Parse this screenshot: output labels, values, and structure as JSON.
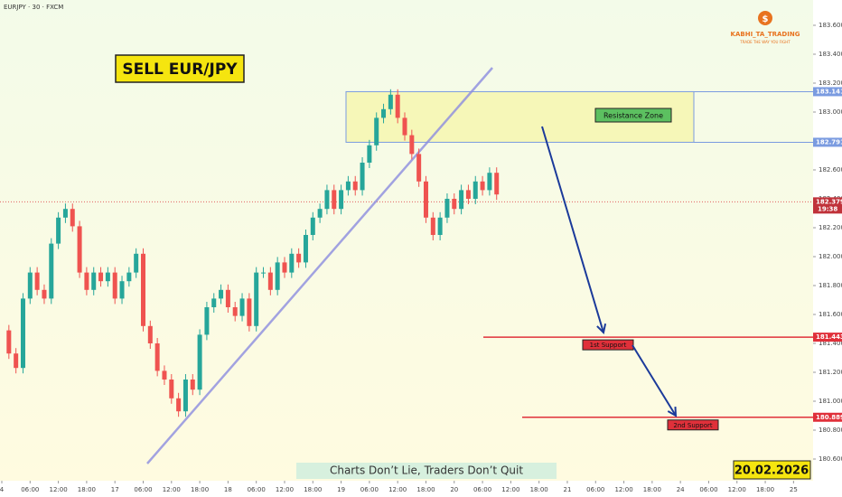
{
  "chart_data": {
    "type": "candlestick",
    "title": "EURJPY · 30 · FXCM",
    "headline": "SELL EUR/JPY",
    "brand": "KABHI_TA_TRADING",
    "tagline": "TRADE THE WAY YOU FIGHT",
    "footer": "Charts Don’t Lie, Traders Don’t Quit",
    "date": "20.02.2026",
    "countdown": "19:38",
    "current_price": 182.379,
    "resistance_zone": {
      "label": "Resistance Zone",
      "top": 183.141,
      "bottom": 182.791
    },
    "supports": [
      {
        "label": "1st Support",
        "value": 181.443
      },
      {
        "label": "2nd Support",
        "value": 180.889
      }
    ],
    "up_color": "#26a69a",
    "down_color": "#ef5350",
    "x": [
      0,
      3,
      6,
      9,
      12,
      15,
      18,
      21,
      24,
      27,
      30,
      33,
      36,
      39,
      42,
      45,
      48,
      51,
      54,
      57,
      60,
      63,
      66,
      69,
      72,
      75,
      78,
      81,
      84,
      87,
      90,
      93,
      96,
      99,
      102,
      105,
      108,
      111,
      114,
      117,
      120,
      123,
      126,
      129,
      132,
      135,
      138,
      141,
      144,
      147,
      150,
      153,
      156,
      159,
      162,
      165,
      168,
      171,
      174,
      177,
      180,
      183,
      186,
      189,
      192,
      195,
      198,
      201,
      204,
      207,
      210
    ],
    "values": [
      181.49,
      181.33,
      181.23,
      181.71,
      181.89,
      181.77,
      181.71,
      182.09,
      182.27,
      182.33,
      182.21,
      181.89,
      181.77,
      181.89,
      181.83,
      181.89,
      181.71,
      181.83,
      181.89,
      182.02,
      181.52,
      181.4,
      181.21,
      181.15,
      181.02,
      180.93,
      181.15,
      181.08,
      181.46,
      181.65,
      181.71,
      181.77,
      181.65,
      181.59,
      181.71,
      181.52,
      181.89,
      181.89,
      181.77,
      181.96,
      181.89,
      182.02,
      181.96,
      182.15,
      182.27,
      182.33,
      182.46,
      182.33,
      182.46,
      182.52,
      182.46,
      182.65,
      182.77,
      182.96,
      183.02,
      183.12,
      182.96,
      182.84,
      182.71,
      182.52,
      182.27,
      182.15,
      182.27,
      182.4,
      182.33,
      182.46,
      182.4,
      182.52,
      182.46,
      182.58,
      182.43
    ],
    "xlim": [
      -0.77,
      344.3
    ],
    "xticks": [
      {
        "value": 0,
        "label": "4"
      },
      {
        "value": 12,
        "label": "06:00"
      },
      {
        "value": 24,
        "label": "12:00"
      },
      {
        "value": 36,
        "label": "18:00"
      },
      {
        "value": 48,
        "label": "17"
      },
      {
        "value": 60,
        "label": "06:00"
      },
      {
        "value": 72,
        "label": "12:00"
      },
      {
        "value": 84,
        "label": "18:00"
      },
      {
        "value": 96,
        "label": "18"
      },
      {
        "value": 108,
        "label": "06:00"
      },
      {
        "value": 120,
        "label": "12:00"
      },
      {
        "value": 132,
        "label": "18:00"
      },
      {
        "value": 144,
        "label": "19"
      },
      {
        "value": 156,
        "label": "06:00"
      },
      {
        "value": 168,
        "label": "12:00"
      },
      {
        "value": 180,
        "label": "18:00"
      },
      {
        "value": 192,
        "label": "20"
      },
      {
        "value": 204,
        "label": "06:00"
      },
      {
        "value": 216,
        "label": "12:00"
      },
      {
        "value": 228,
        "label": "18:00"
      },
      {
        "value": 240,
        "label": "21"
      },
      {
        "value": 252,
        "label": "06:00"
      },
      {
        "value": 264,
        "label": "12:00"
      },
      {
        "value": 276,
        "label": "18:00"
      },
      {
        "value": 288,
        "label": "24"
      },
      {
        "value": 300,
        "label": "06:00"
      },
      {
        "value": 312,
        "label": "12:00"
      },
      {
        "value": 324,
        "label": "18:00"
      },
      {
        "value": 336,
        "label": "25"
      }
    ],
    "ylim": [
      180.45,
      183.775
    ],
    "yticks": [
      {
        "value": 180.6,
        "label": "180.600"
      },
      {
        "value": 180.8,
        "label": "180.800"
      },
      {
        "value": 181,
        "label": "181.000"
      },
      {
        "value": 181.2,
        "label": "181.200"
      },
      {
        "value": 181.4,
        "label": "181.400"
      },
      {
        "value": 181.6,
        "label": "181.600"
      },
      {
        "value": 181.8,
        "label": "181.800"
      },
      {
        "value": 182,
        "label": "182.000"
      },
      {
        "value": 182.2,
        "label": "182.200"
      },
      {
        "value": 182.4,
        "label": "182.400"
      },
      {
        "value": 182.6,
        "label": "182.600"
      },
      {
        "value": 182.8,
        "label": "182.800"
      },
      {
        "value": 183,
        "label": "183.000"
      },
      {
        "value": 183.2,
        "label": "183.200"
      },
      {
        "value": 183.4,
        "label": "183.400"
      },
      {
        "value": 183.6,
        "label": "183.600"
      }
    ]
  }
}
